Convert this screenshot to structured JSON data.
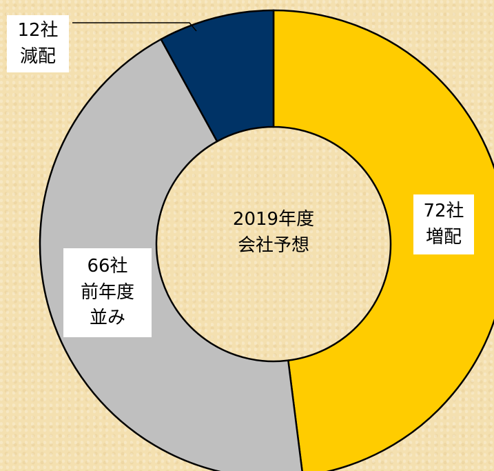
{
  "chart_data": {
    "type": "donut",
    "categories": [
      "増配",
      "前年度並み",
      "減配"
    ],
    "values": [
      72,
      66,
      12
    ],
    "value_labels": [
      "72社",
      "66社",
      "12社"
    ],
    "colors": [
      "#ffcc00",
      "#bfbfbf",
      "#003366"
    ],
    "center_label": [
      "2019年度",
      "会社予想"
    ]
  }
}
